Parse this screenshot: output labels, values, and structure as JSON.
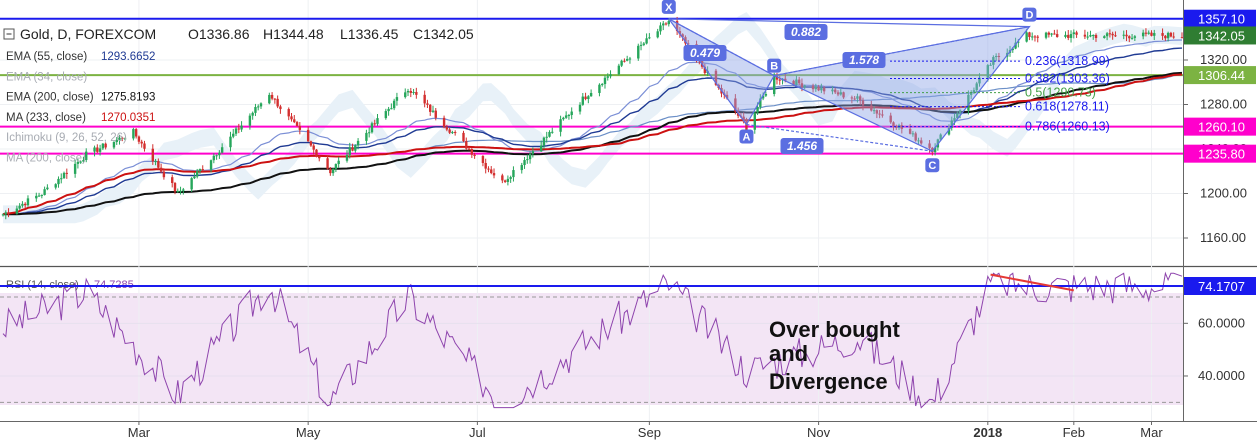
{
  "header": {
    "symbol_text": "Gold, D, FOREXCOM",
    "open": "O1336.86",
    "high": "H1344.48",
    "low": "L1336.45",
    "close": "C1342.05"
  },
  "indicators": [
    {
      "name": "EMA (55, close)",
      "value": "1293.6652",
      "color": "#1f3a93",
      "faded": false
    },
    {
      "name": "EMA (34, close)",
      "value": "",
      "color": "#9aa0aa",
      "faded": true
    },
    {
      "name": "EMA (200, close)",
      "value": "1275.8193",
      "color": "#111111",
      "faded": false
    },
    {
      "name": "MA (233, close)",
      "value": "1270.0351",
      "color": "#cc1111",
      "faded": false
    },
    {
      "name": "Ichimoku (9, 26, 52, 26)",
      "value": "",
      "color": "#9aa0aa",
      "faded": true
    },
    {
      "name": "MA (200, close)",
      "value": "",
      "color": "#9aa0aa",
      "faded": true
    }
  ],
  "rsi": {
    "label": "RSI (14, close)",
    "value": "74.7285",
    "axis_value": "74.1707",
    "ticks": [
      "60.0000",
      "40.0000"
    ],
    "annotation": [
      "Over bought",
      "and",
      "Divergence"
    ]
  },
  "price_axis": {
    "ticks": [
      "1320.00",
      "1280.00",
      "1240.00",
      "1200.00",
      "1160.00"
    ],
    "badges": [
      {
        "label": "1357.10",
        "bg": "#1a1aee",
        "fg": "#ffffff"
      },
      {
        "label": "1342.05",
        "bg": "#2f7d32",
        "fg": "#ffffff"
      },
      {
        "label": "1306.44",
        "bg": "#7cb342",
        "fg": "#ffffff"
      },
      {
        "label": "1260.10",
        "bg": "#ff00cc",
        "fg": "#ffffff"
      },
      {
        "label": "1235.80",
        "bg": "#ff00cc",
        "fg": "#ffffff"
      }
    ]
  },
  "fibonacci": [
    {
      "label": "0.236(1318.99)",
      "color": "#1a1aee"
    },
    {
      "label": "0.382(1303.36)",
      "color": "#1a1aee"
    },
    {
      "label": "0.5(1290.73)",
      "color": "#43a047"
    },
    {
      "label": "0.618(1278.11)",
      "color": "#1a1aee"
    },
    {
      "label": "0.786(1260.13)",
      "color": "#1a1aee"
    }
  ],
  "pattern": {
    "points": [
      "X",
      "A",
      "B",
      "C",
      "D"
    ],
    "ratios": [
      "0.479",
      "0.882",
      "1.578",
      "1.456"
    ]
  },
  "time_axis": [
    "Mar",
    "May",
    "Jul",
    "Sep",
    "Nov",
    "2018",
    "Feb",
    "Mar"
  ],
  "colors": {
    "up": "#26a65b",
    "down": "#d32f2f",
    "pattern": "#5b6ee1",
    "horizontal_blue": "#1a1aee",
    "horizontal_magenta": "#ff00cc",
    "horizontal_green": "#7cb342",
    "rsi_line": "#8e44ad",
    "rsi_fill": "#f3e5f5"
  },
  "chart_data": {
    "type": "candlestick",
    "title": "Gold, D, FOREXCOM",
    "ylim": [
      1140,
      1370
    ],
    "close_series": [
      {
        "date": "2017-01-10",
        "close": 1180
      },
      {
        "date": "2017-01-25",
        "close": 1200
      },
      {
        "date": "2017-02-10",
        "close": 1235
      },
      {
        "date": "2017-02-27",
        "close": 1255
      },
      {
        "date": "2017-03-15",
        "close": 1200
      },
      {
        "date": "2017-04-03",
        "close": 1250
      },
      {
        "date": "2017-04-17",
        "close": 1290
      },
      {
        "date": "2017-05-09",
        "close": 1220
      },
      {
        "date": "2017-06-06",
        "close": 1295
      },
      {
        "date": "2017-07-10",
        "close": 1210
      },
      {
        "date": "2017-08-10",
        "close": 1290
      },
      {
        "date": "2017-09-08",
        "close": 1355
      },
      {
        "date": "2017-10-06",
        "close": 1260
      },
      {
        "date": "2017-10-16",
        "close": 1305
      },
      {
        "date": "2017-11-15",
        "close": 1285
      },
      {
        "date": "2017-12-12",
        "close": 1240
      },
      {
        "date": "2018-01-03",
        "close": 1320
      },
      {
        "date": "2018-01-12",
        "close": 1336
      },
      {
        "date": "2018-01-15",
        "close": 1342.05
      }
    ],
    "horizontal_lines": [
      1357.1,
      1306.44,
      1260.1,
      1235.8
    ],
    "fib_levels": [
      {
        "ratio": 0.236,
        "price": 1318.99
      },
      {
        "ratio": 0.382,
        "price": 1303.36
      },
      {
        "ratio": 0.5,
        "price": 1290.73
      },
      {
        "ratio": 0.618,
        "price": 1278.11
      },
      {
        "ratio": 0.786,
        "price": 1260.13
      }
    ],
    "pattern_points": [
      {
        "label": "X",
        "date": "2017-09-08",
        "price": 1357
      },
      {
        "label": "A",
        "date": "2017-10-06",
        "price": 1262
      },
      {
        "label": "B",
        "date": "2017-10-16",
        "price": 1306
      },
      {
        "label": "C",
        "date": "2017-12-12",
        "price": 1238
      },
      {
        "label": "D",
        "date": "2018-01-16",
        "price": 1350
      }
    ],
    "rsi_series": [
      {
        "date": "2017-01-10",
        "rsi": 58
      },
      {
        "date": "2017-02-10",
        "rsi": 72
      },
      {
        "date": "2017-03-15",
        "rsi": 33
      },
      {
        "date": "2017-04-17",
        "rsi": 75
      },
      {
        "date": "2017-05-09",
        "rsi": 30
      },
      {
        "date": "2017-06-06",
        "rsi": 70
      },
      {
        "date": "2017-07-10",
        "rsi": 30
      },
      {
        "date": "2017-09-08",
        "rsi": 75
      },
      {
        "date": "2017-10-06",
        "rsi": 42
      },
      {
        "date": "2017-11-15",
        "rsi": 55
      },
      {
        "date": "2017-12-12",
        "rsi": 30
      },
      {
        "date": "2018-01-03",
        "rsi": 77
      },
      {
        "date": "2018-01-15",
        "rsi": 74.17
      }
    ],
    "rsi_ylim": [
      25,
      80
    ]
  }
}
